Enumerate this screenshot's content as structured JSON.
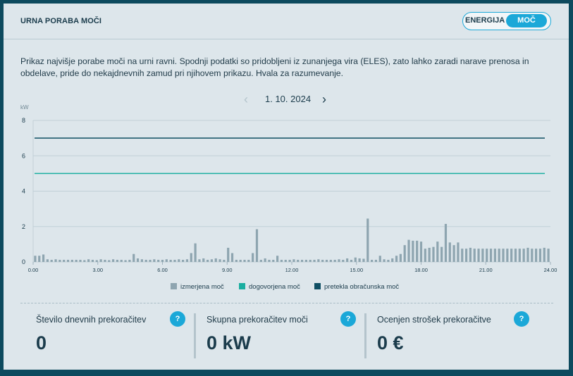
{
  "header": {
    "title": "URNA PORABA MOČI",
    "toggle": {
      "option_energy": "ENERGIJA",
      "option_power": "MOČ",
      "selected": "MOČ"
    }
  },
  "description": "Prikaz najvišje porabe moči na urni ravni. Spodnji podatki so pridobljeni iz zunanjega vira (ELES), zato lahko zaradi narave prenosa in obdelave, pride do nekajdnevnih zamud pri njihovem prikazu. Hvala za razumevanje.",
  "date_nav": {
    "date": "1. 10. 2024",
    "prev_icon": "chevron-left-icon",
    "next_icon": "chevron-right-icon"
  },
  "chart_data": {
    "type": "bar",
    "y_unit": "kW",
    "ylim": [
      0,
      8
    ],
    "y_ticks": [
      "0",
      "2",
      "4",
      "6",
      "8"
    ],
    "xlim": [
      0,
      24
    ],
    "x_ticks": [
      "0.00",
      "3.00",
      "6.00",
      "9.00",
      "12.00",
      "15.00",
      "18.00",
      "21.00",
      "24.00"
    ],
    "grid": true,
    "legend_position": "bottom",
    "series": [
      {
        "name": "izmerjena moč",
        "color": "#8ea5b0",
        "values": [
          0.35,
          0.35,
          0.42,
          0.15,
          0.12,
          0.15,
          0.12,
          0.12,
          0.12,
          0.12,
          0.12,
          0.12,
          0.1,
          0.15,
          0.12,
          0.1,
          0.15,
          0.12,
          0.1,
          0.15,
          0.12,
          0.12,
          0.1,
          0.12,
          0.45,
          0.2,
          0.15,
          0.12,
          0.12,
          0.15,
          0.12,
          0.12,
          0.15,
          0.12,
          0.12,
          0.15,
          0.12,
          0.15,
          0.5,
          1.05,
          0.15,
          0.2,
          0.12,
          0.15,
          0.2,
          0.15,
          0.12,
          0.8,
          0.5,
          0.12,
          0.12,
          0.12,
          0.12,
          0.5,
          1.85,
          0.12,
          0.2,
          0.12,
          0.12,
          0.35,
          0.12,
          0.12,
          0.12,
          0.15,
          0.12,
          0.12,
          0.12,
          0.12,
          0.12,
          0.15,
          0.12,
          0.12,
          0.12,
          0.12,
          0.15,
          0.12,
          0.2,
          0.12,
          0.25,
          0.2,
          0.18,
          2.45,
          0.12,
          0.12,
          0.35,
          0.15,
          0.12,
          0.2,
          0.35,
          0.45,
          0.95,
          1.25,
          1.2,
          1.2,
          1.15,
          0.75,
          0.8,
          0.85,
          1.15,
          0.85,
          2.15,
          1.1,
          0.95,
          1.1,
          0.75,
          0.75,
          0.8,
          0.75,
          0.75,
          0.75,
          0.75,
          0.75,
          0.75,
          0.75,
          0.75,
          0.75,
          0.75,
          0.75,
          0.75,
          0.75,
          0.8,
          0.75,
          0.75,
          0.75,
          0.8,
          0.75
        ]
      },
      {
        "name": "dogovorjena moč",
        "color": "#1aaea0",
        "values": [
          5.0
        ]
      },
      {
        "name": "pretekla obračunska moč",
        "color": "#0f4f64",
        "values": [
          7.0
        ]
      }
    ]
  },
  "stats": [
    {
      "label": "Število dnevnih prekoračitev",
      "value": "0",
      "help": "?"
    },
    {
      "label": "Skupna prekoračitev moči",
      "value": "0 kW",
      "help": "?"
    },
    {
      "label": "Ocenjen strošek prekoračitve",
      "value": "0 €",
      "help": "?"
    }
  ]
}
